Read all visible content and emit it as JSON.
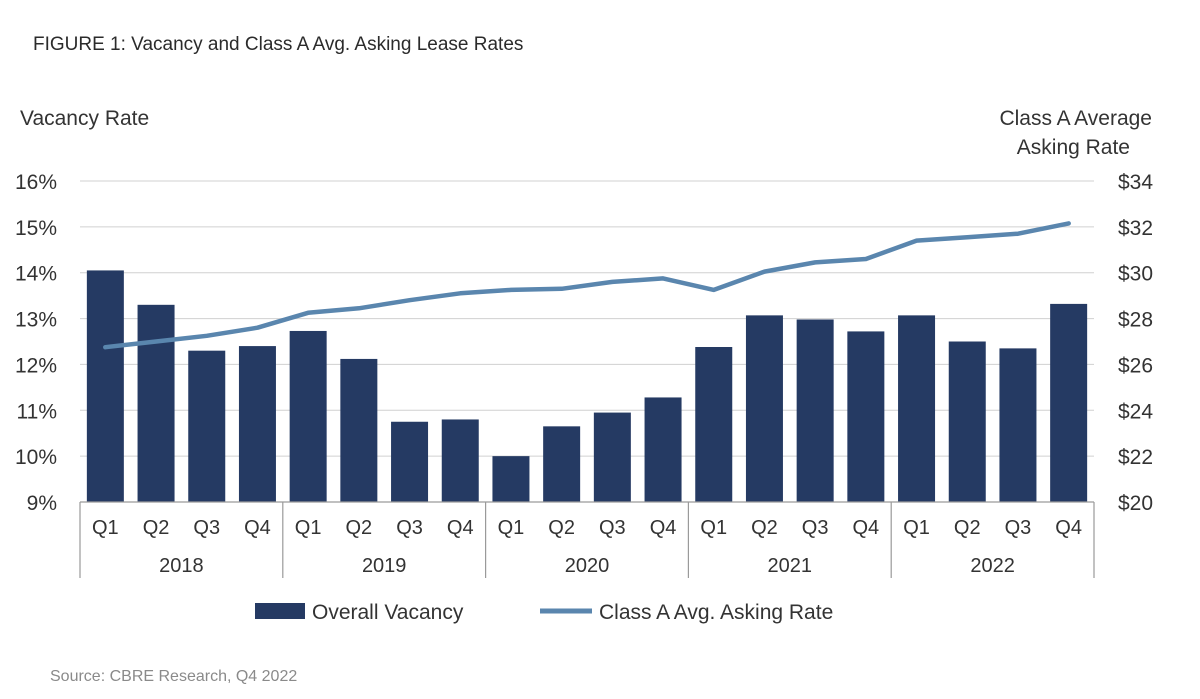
{
  "figure_title": "FIGURE 1: Vacancy and Class A Avg. Asking Lease Rates",
  "source": "Source: CBRE Research, Q4 2022",
  "colors": {
    "bar": "#253A63",
    "line": "#5A86AE",
    "grid": "#D0D0D0",
    "axis": "#9A9A9A"
  },
  "chart_data": {
    "type": "bar",
    "combo_line": true,
    "left_axis_label": "Vacancy Rate",
    "right_axis_label": [
      "Class A Average",
      "Asking Rate"
    ],
    "left_ylim": [
      9,
      16
    ],
    "right_ylim": [
      20,
      34
    ],
    "left_ticks": [
      "16%",
      "15%",
      "14%",
      "13%",
      "12%",
      "11%",
      "10%",
      "9%"
    ],
    "right_ticks": [
      "$34",
      "$32",
      "$30",
      "$28",
      "$26",
      "$24",
      "$22",
      "$20"
    ],
    "grid": true,
    "legend_position": "bottom",
    "categories": [
      "Q1",
      "Q2",
      "Q3",
      "Q4",
      "Q1",
      "Q2",
      "Q3",
      "Q4",
      "Q1",
      "Q2",
      "Q3",
      "Q4",
      "Q1",
      "Q2",
      "Q3",
      "Q4",
      "Q1",
      "Q2",
      "Q3",
      "Q4"
    ],
    "groups": [
      "2018",
      "2019",
      "2020",
      "2021",
      "2022"
    ],
    "series": [
      {
        "name": "Overall Vacancy",
        "type": "bar",
        "axis": "left",
        "values": [
          14.05,
          13.3,
          12.3,
          12.4,
          12.73,
          12.12,
          10.75,
          10.8,
          10.0,
          10.65,
          10.95,
          11.28,
          12.38,
          13.07,
          12.98,
          12.72,
          13.07,
          12.5,
          12.35,
          13.32
        ]
      },
      {
        "name": "Class A Avg. Asking Rate",
        "type": "line",
        "axis": "right",
        "values": [
          26.75,
          27.0,
          27.25,
          27.6,
          28.25,
          28.45,
          28.8,
          29.1,
          29.25,
          29.3,
          29.6,
          29.75,
          29.25,
          30.05,
          30.45,
          30.6,
          31.4,
          31.55,
          31.7,
          32.15
        ]
      }
    ]
  }
}
